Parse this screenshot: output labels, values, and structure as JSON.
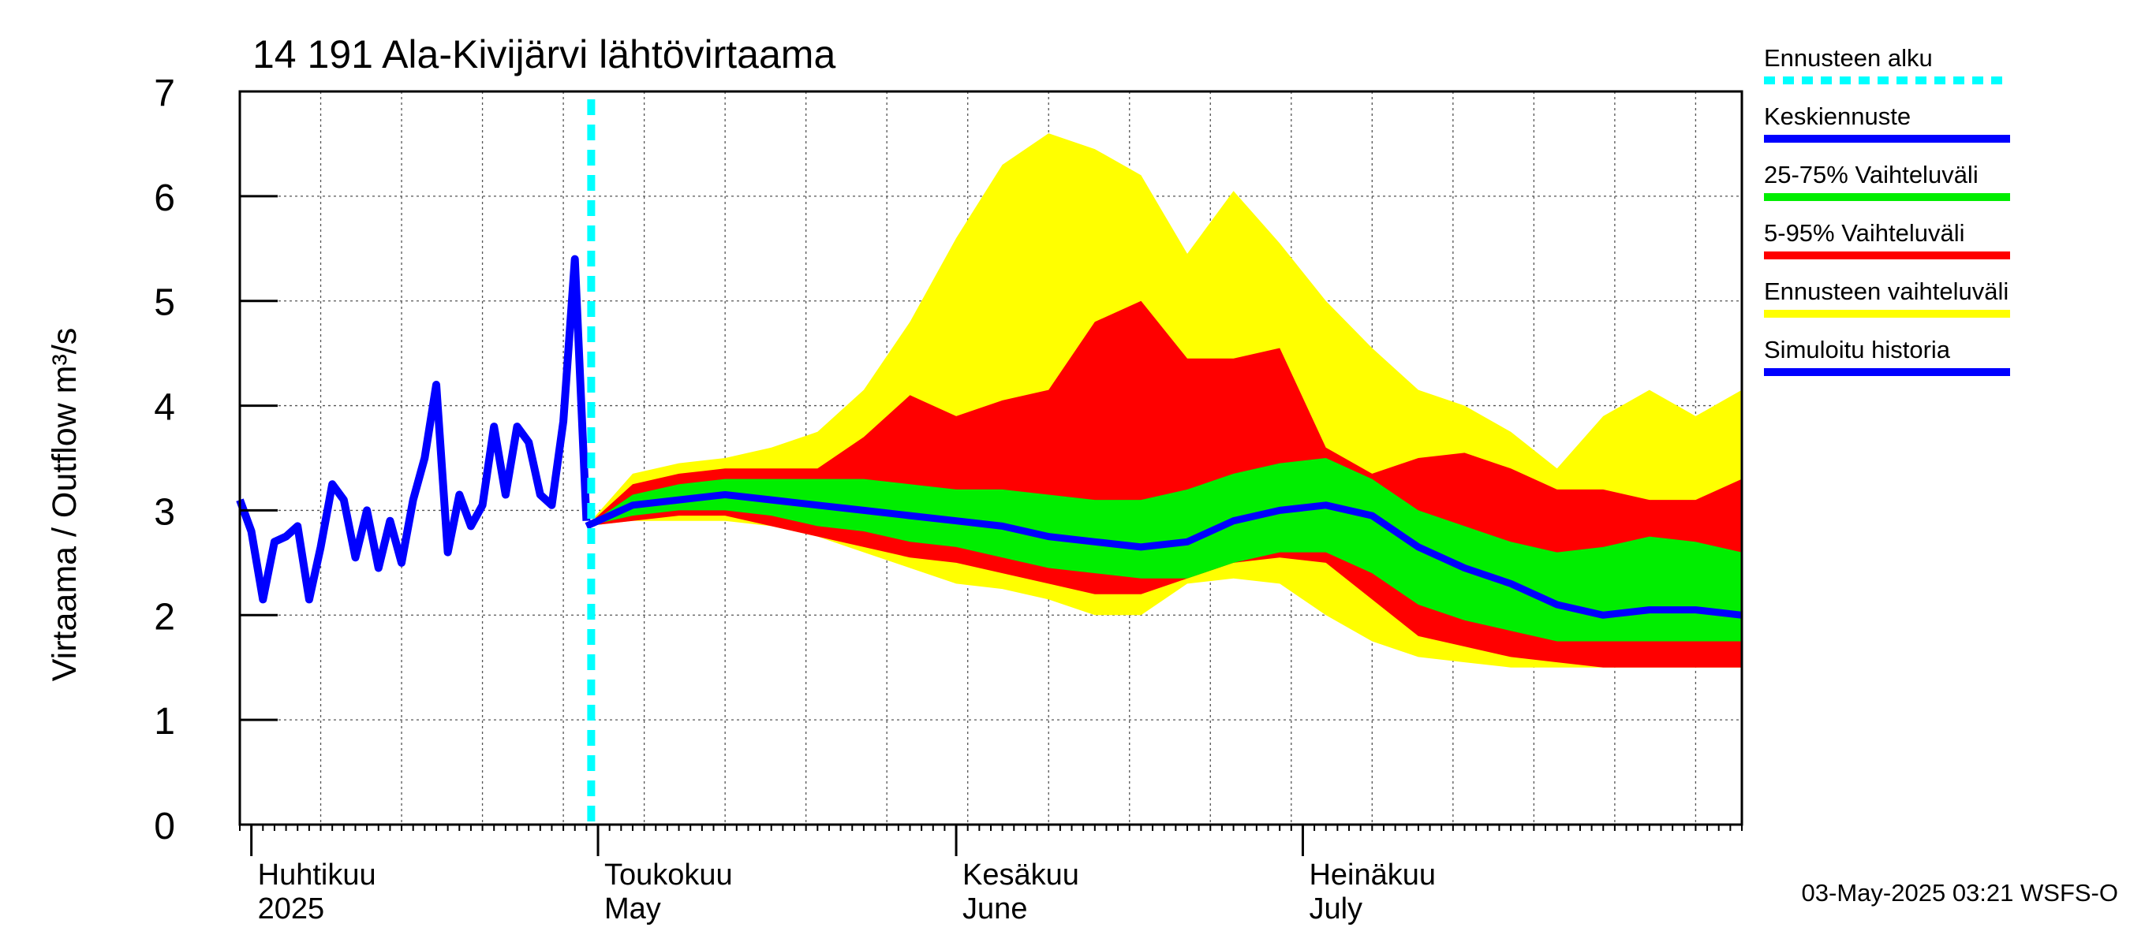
{
  "chart_data": {
    "type": "area",
    "title": "14 191 Ala-Kivijärvi lähtövirtaama",
    "ylabel": "Virtaama / Outflow    m³/s",
    "ylim": [
      0,
      7
    ],
    "yticks": [
      0,
      1,
      2,
      3,
      4,
      5,
      6,
      7
    ],
    "xlim": [
      "2025-03-31",
      "2025-08-08"
    ],
    "grid": true,
    "legend_position": "right",
    "forecast_start": "2025-04-30",
    "month_labels": [
      {
        "date": "2025-04-01",
        "fi": "Huhtikuu",
        "en": "2025"
      },
      {
        "date": "2025-05-01",
        "fi": "Toukokuu",
        "en": "May"
      },
      {
        "date": "2025-06-01",
        "fi": "Kesäkuu",
        "en": "June"
      },
      {
        "date": "2025-07-01",
        "fi": "Heinäkuu",
        "en": "July"
      }
    ],
    "legend": [
      {
        "label": "Ennusteen alku",
        "color": "#00ffff",
        "style": "dashed"
      },
      {
        "label": "Keskiennuste",
        "color": "#0000ff",
        "style": "solid"
      },
      {
        "label": "25-75% Vaihteluväli",
        "color": "#00ee00",
        "style": "solid"
      },
      {
        "label": "5-95% Vaihteluväli",
        "color": "#ff0000",
        "style": "solid"
      },
      {
        "label": "Ennusteen vaihteluväli",
        "color": "#ffff00",
        "style": "solid"
      },
      {
        "label": "Simuloitu historia",
        "color": "#0000ff",
        "style": "solid"
      }
    ],
    "colors": {
      "range_full": "#ffff00",
      "range_5_95": "#ff0000",
      "range_25_75": "#00ee00",
      "median": "#0000ff",
      "history": "#0000ff",
      "forecast_start": "#00ffff"
    },
    "history": {
      "dates": [
        "2025-03-31",
        "2025-04-01",
        "2025-04-02",
        "2025-04-03",
        "2025-04-04",
        "2025-04-05",
        "2025-04-06",
        "2025-04-07",
        "2025-04-08",
        "2025-04-09",
        "2025-04-10",
        "2025-04-11",
        "2025-04-12",
        "2025-04-13",
        "2025-04-14",
        "2025-04-15",
        "2025-04-16",
        "2025-04-17",
        "2025-04-18",
        "2025-04-19",
        "2025-04-20",
        "2025-04-21",
        "2025-04-22",
        "2025-04-23",
        "2025-04-24",
        "2025-04-25",
        "2025-04-26",
        "2025-04-27",
        "2025-04-28",
        "2025-04-29",
        "2025-04-30"
      ],
      "values": [
        3.1,
        2.8,
        2.15,
        2.7,
        2.75,
        2.85,
        2.15,
        2.65,
        3.25,
        3.1,
        2.55,
        3.0,
        2.45,
        2.9,
        2.5,
        3.1,
        3.5,
        4.2,
        2.6,
        3.15,
        2.85,
        3.05,
        3.8,
        3.15,
        3.8,
        3.65,
        3.15,
        3.05,
        3.85,
        5.4,
        2.9
      ]
    },
    "forecast": {
      "dates": [
        "2025-04-30",
        "2025-05-04",
        "2025-05-08",
        "2025-05-12",
        "2025-05-16",
        "2025-05-20",
        "2025-05-24",
        "2025-05-28",
        "2025-06-01",
        "2025-06-05",
        "2025-06-09",
        "2025-06-13",
        "2025-06-17",
        "2025-06-21",
        "2025-06-25",
        "2025-06-29",
        "2025-07-03",
        "2025-07-07",
        "2025-07-11",
        "2025-07-15",
        "2025-07-19",
        "2025-07-23",
        "2025-07-27",
        "2025-07-31",
        "2025-08-04",
        "2025-08-08"
      ],
      "median": [
        2.85,
        3.05,
        3.1,
        3.15,
        3.1,
        3.05,
        3.0,
        2.95,
        2.9,
        2.85,
        2.75,
        2.7,
        2.65,
        2.7,
        2.9,
        3.0,
        3.05,
        2.95,
        2.65,
        2.45,
        2.3,
        2.1,
        2.0,
        2.05,
        2.05,
        2.0
      ],
      "p25": [
        2.85,
        2.95,
        3.0,
        3.0,
        2.95,
        2.85,
        2.8,
        2.7,
        2.65,
        2.55,
        2.45,
        2.4,
        2.35,
        2.35,
        2.5,
        2.6,
        2.6,
        2.4,
        2.1,
        1.95,
        1.85,
        1.75,
        1.75,
        1.75,
        1.75,
        1.75
      ],
      "p75": [
        2.85,
        3.15,
        3.25,
        3.3,
        3.3,
        3.3,
        3.3,
        3.25,
        3.2,
        3.2,
        3.15,
        3.1,
        3.1,
        3.2,
        3.35,
        3.45,
        3.5,
        3.3,
        3.0,
        2.85,
        2.7,
        2.6,
        2.65,
        2.75,
        2.7,
        2.6
      ],
      "p5": [
        2.85,
        2.9,
        2.95,
        2.95,
        2.85,
        2.75,
        2.65,
        2.55,
        2.5,
        2.4,
        2.3,
        2.2,
        2.2,
        2.35,
        2.5,
        2.55,
        2.5,
        2.15,
        1.8,
        1.7,
        1.6,
        1.55,
        1.5,
        1.5,
        1.5,
        1.5
      ],
      "p95": [
        2.85,
        3.25,
        3.35,
        3.4,
        3.4,
        3.4,
        3.7,
        4.1,
        3.9,
        4.05,
        4.15,
        4.8,
        5.0,
        4.45,
        4.45,
        4.55,
        3.6,
        3.35,
        3.5,
        3.55,
        3.4,
        3.2,
        3.2,
        3.1,
        3.1,
        3.3
      ],
      "min": [
        2.85,
        2.9,
        2.9,
        2.9,
        2.85,
        2.75,
        2.6,
        2.45,
        2.3,
        2.25,
        2.15,
        2.0,
        2.0,
        2.3,
        2.35,
        2.3,
        2.0,
        1.75,
        1.6,
        1.55,
        1.5,
        1.5,
        1.5,
        1.5,
        1.5,
        1.5
      ],
      "max": [
        2.85,
        3.35,
        3.45,
        3.5,
        3.6,
        3.75,
        4.15,
        4.8,
        5.6,
        6.3,
        6.6,
        6.45,
        6.2,
        5.45,
        6.05,
        5.55,
        5.0,
        4.55,
        4.15,
        4.0,
        3.75,
        3.4,
        3.9,
        4.15,
        3.9,
        4.15
      ]
    },
    "timestamp": "03-May-2025 03:21 WSFS-O"
  }
}
